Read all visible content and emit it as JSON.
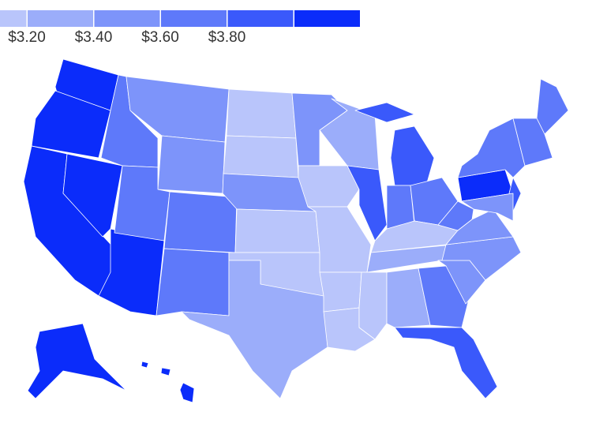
{
  "map": {
    "legend": {
      "colors": [
        "#b9c5fb",
        "#9badfa",
        "#7d94fa",
        "#5e79fa",
        "#3a59fb",
        "#0b2cfa"
      ],
      "labels": [
        "$3.20",
        "$3.40",
        "$3.60",
        "$3.80"
      ]
    }
  }
}
